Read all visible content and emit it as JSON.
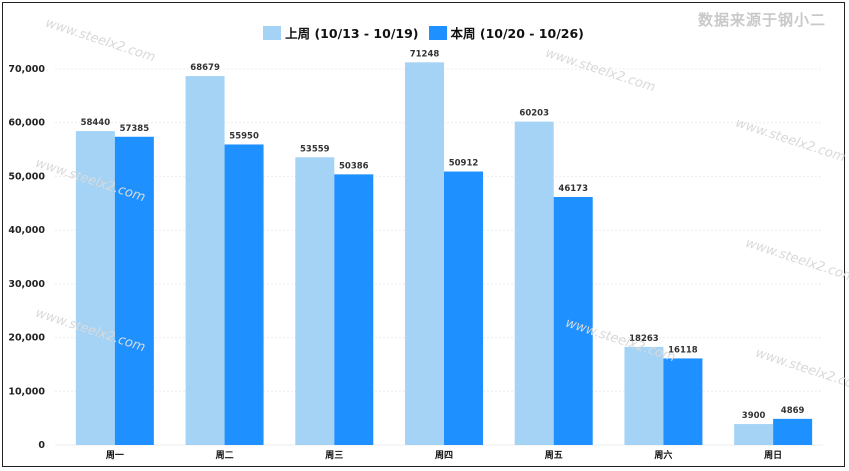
{
  "source_label": "数据来源于钢小二",
  "watermark": "www.steelx2.com",
  "colors": {
    "last_week": "#a5d3f5",
    "this_week": "#1e90ff"
  },
  "chart_data": {
    "type": "bar",
    "categories": [
      "周一",
      "周二",
      "周三",
      "周四",
      "周五",
      "周六",
      "周日"
    ],
    "series": [
      {
        "name": "上周 (10/13 - 10/19)",
        "values": [
          58440,
          68679,
          53559,
          71248,
          60203,
          18263,
          3900
        ]
      },
      {
        "name": "本周 (10/20 - 10/26)",
        "values": [
          57385,
          55950,
          50386,
          50912,
          46173,
          16118,
          4869
        ]
      }
    ],
    "ylim": [
      0,
      70000
    ],
    "yticks": [
      "0",
      "10,000",
      "20,000",
      "30,000",
      "40,000",
      "50,000",
      "60,000",
      "70,000"
    ],
    "legend_position": "top-center",
    "grid": true
  }
}
